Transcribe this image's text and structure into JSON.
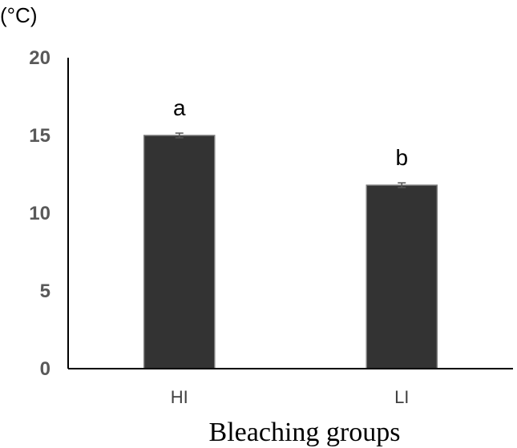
{
  "chart_data": {
    "type": "bar",
    "title": "",
    "ylabel": "(°C)",
    "xlabel": "Bleaching groups",
    "categories": [
      "HI",
      "LI"
    ],
    "values": [
      15.0,
      11.8
    ],
    "errors": [
      0.15,
      0.15
    ],
    "annotations": [
      "a",
      "b"
    ],
    "ylim": [
      0,
      20
    ],
    "yticks": [
      0,
      5,
      10,
      15,
      20
    ],
    "grid": false,
    "bar_color": "#333333",
    "axis_color": "#000000"
  }
}
